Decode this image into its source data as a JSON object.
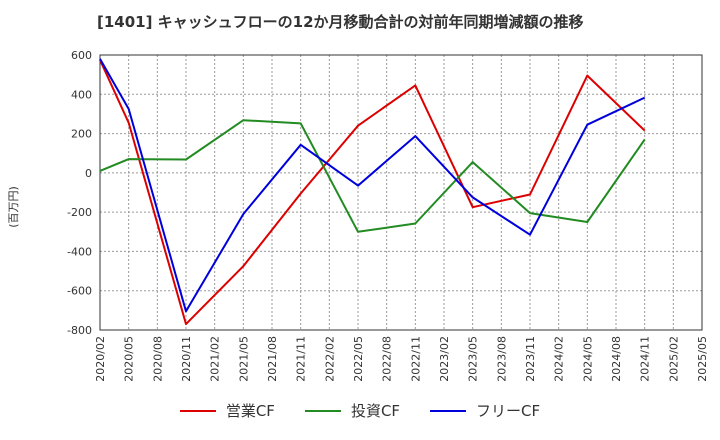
{
  "chart_data": {
    "type": "line",
    "title": "[1401]  キャッシュフローの12か月移動合計の対前年同期増減額の推移",
    "ylabel": "(百万円)",
    "xlabel": "",
    "ylim": [
      -800,
      600
    ],
    "yticks": [
      600,
      400,
      200,
      0,
      -200,
      -400,
      -600,
      -800
    ],
    "x": [
      "2020/02",
      "2020/05",
      "2020/08",
      "2020/11",
      "2021/02",
      "2021/05",
      "2021/08",
      "2021/11",
      "2022/02",
      "2022/05",
      "2022/08",
      "2022/11",
      "2023/02",
      "2023/05",
      "2023/08",
      "2023/11",
      "2024/02",
      "2024/05",
      "2024/08",
      "2024/11",
      "2025/02",
      "2025/05"
    ],
    "grid": true,
    "legend_position": "bottom",
    "series": [
      {
        "name": "営業CF",
        "color": "#dd0000",
        "points": [
          [
            0,
            575
          ],
          [
            1,
            255
          ],
          [
            3,
            -770
          ],
          [
            5,
            -475
          ],
          [
            7,
            -105
          ],
          [
            9,
            240
          ],
          [
            11,
            445
          ],
          [
            13,
            -175
          ],
          [
            15,
            -110
          ],
          [
            17,
            495
          ],
          [
            19,
            215
          ]
        ]
      },
      {
        "name": "投資CF",
        "color": "#228b22",
        "points": [
          [
            0,
            10
          ],
          [
            1,
            70
          ],
          [
            3,
            68
          ],
          [
            5,
            268
          ],
          [
            7,
            252
          ],
          [
            9,
            -300
          ],
          [
            11,
            -258
          ],
          [
            13,
            55
          ],
          [
            15,
            -205
          ],
          [
            17,
            -250
          ],
          [
            19,
            170
          ]
        ]
      },
      {
        "name": "フリーCF",
        "color": "#0000dd",
        "points": [
          [
            0,
            580
          ],
          [
            1,
            325
          ],
          [
            3,
            -705
          ],
          [
            5,
            -210
          ],
          [
            7,
            143
          ],
          [
            9,
            -65
          ],
          [
            11,
            187
          ],
          [
            13,
            -125
          ],
          [
            15,
            -315
          ],
          [
            17,
            245
          ],
          [
            19,
            383
          ]
        ]
      }
    ]
  }
}
